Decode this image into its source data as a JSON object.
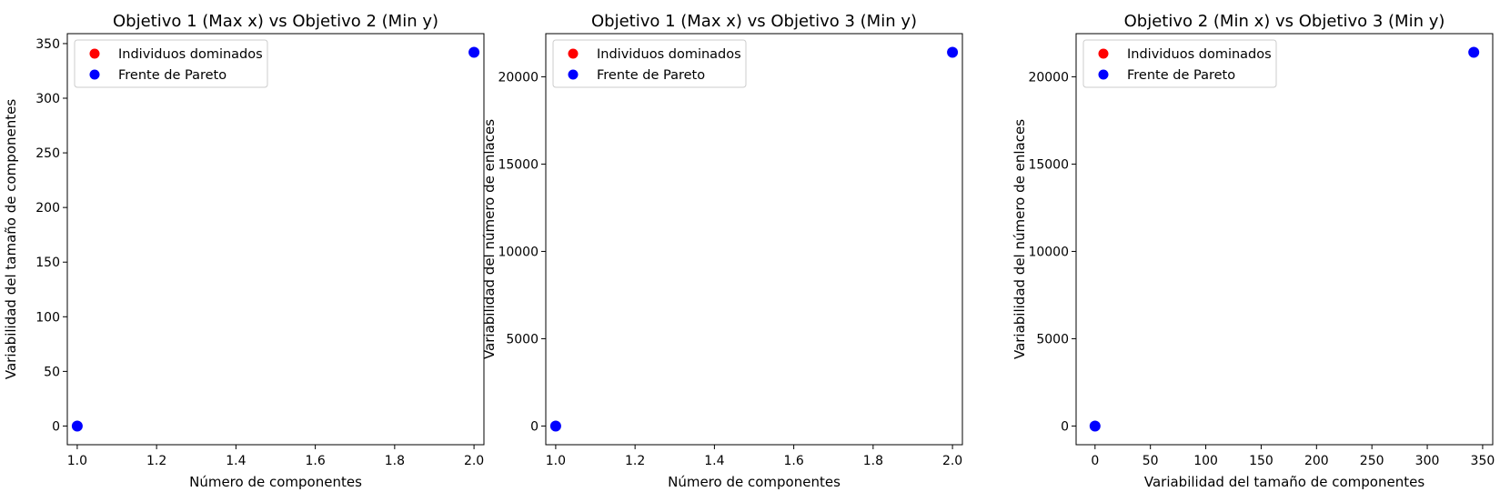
{
  "chart_data": [
    {
      "type": "scatter",
      "title": "Objetivo 1 (Max x) vs Objetivo 2 (Min y)",
      "xlabel": "Número de componentes",
      "ylabel": "Variabilidad del tamaño de componentes",
      "xlim": [
        0.975,
        2.025
      ],
      "ylim": [
        -17.1,
        359.1
      ],
      "xticks": [
        1.0,
        1.2,
        1.4,
        1.6,
        1.8,
        2.0
      ],
      "xtick_labels": [
        "1.0",
        "1.2",
        "1.4",
        "1.6",
        "1.8",
        "2.0"
      ],
      "yticks": [
        0,
        50,
        100,
        150,
        200,
        250,
        300,
        350
      ],
      "ytick_labels": [
        "0",
        "50",
        "100",
        "150",
        "200",
        "250",
        "300",
        "350"
      ],
      "legend_position": "top-left",
      "grid": false,
      "series": [
        {
          "name": "Individuos dominados",
          "color": "#ff0000",
          "points": []
        },
        {
          "name": "Frente de Pareto",
          "color": "#0000ff",
          "points": [
            [
              1.0,
              0
            ],
            [
              2.0,
              342
            ]
          ]
        }
      ]
    },
    {
      "type": "scatter",
      "title": "Objetivo 1 (Max x) vs Objetivo 3 (Min y)",
      "xlabel": "Número de componentes",
      "ylabel": "Variabilidad del número de enlaces",
      "xlim": [
        0.975,
        2.025
      ],
      "ylim": [
        -1070,
        22470
      ],
      "xticks": [
        1.0,
        1.2,
        1.4,
        1.6,
        1.8,
        2.0
      ],
      "xtick_labels": [
        "1.0",
        "1.2",
        "1.4",
        "1.6",
        "1.8",
        "2.0"
      ],
      "yticks": [
        0,
        5000,
        10000,
        15000,
        20000
      ],
      "ytick_labels": [
        "0",
        "5000",
        "10000",
        "15000",
        "20000"
      ],
      "legend_position": "top-left",
      "grid": false,
      "series": [
        {
          "name": "Individuos dominados",
          "color": "#ff0000",
          "points": []
        },
        {
          "name": "Frente de Pareto",
          "color": "#0000ff",
          "points": [
            [
              1.0,
              0
            ],
            [
              2.0,
              21400
            ]
          ]
        }
      ]
    },
    {
      "type": "scatter",
      "title": "Objetivo 2 (Min x) vs Objetivo 3 (Min y)",
      "xlabel": "Variabilidad del tamaño de componentes",
      "ylabel": "Variabilidad del número de enlaces",
      "xlim": [
        -17.1,
        359.1
      ],
      "ylim": [
        -1070,
        22470
      ],
      "xticks": [
        0,
        50,
        100,
        150,
        200,
        250,
        300,
        350
      ],
      "xtick_labels": [
        "0",
        "50",
        "100",
        "150",
        "200",
        "250",
        "300",
        "350"
      ],
      "yticks": [
        0,
        5000,
        10000,
        15000,
        20000
      ],
      "ytick_labels": [
        "0",
        "5000",
        "10000",
        "15000",
        "20000"
      ],
      "legend_position": "top-left",
      "grid": false,
      "series": [
        {
          "name": "Individuos dominados",
          "color": "#ff0000",
          "points": []
        },
        {
          "name": "Frente de Pareto",
          "color": "#0000ff",
          "points": [
            [
              0,
              0
            ],
            [
              342,
              21400
            ]
          ]
        }
      ]
    }
  ]
}
